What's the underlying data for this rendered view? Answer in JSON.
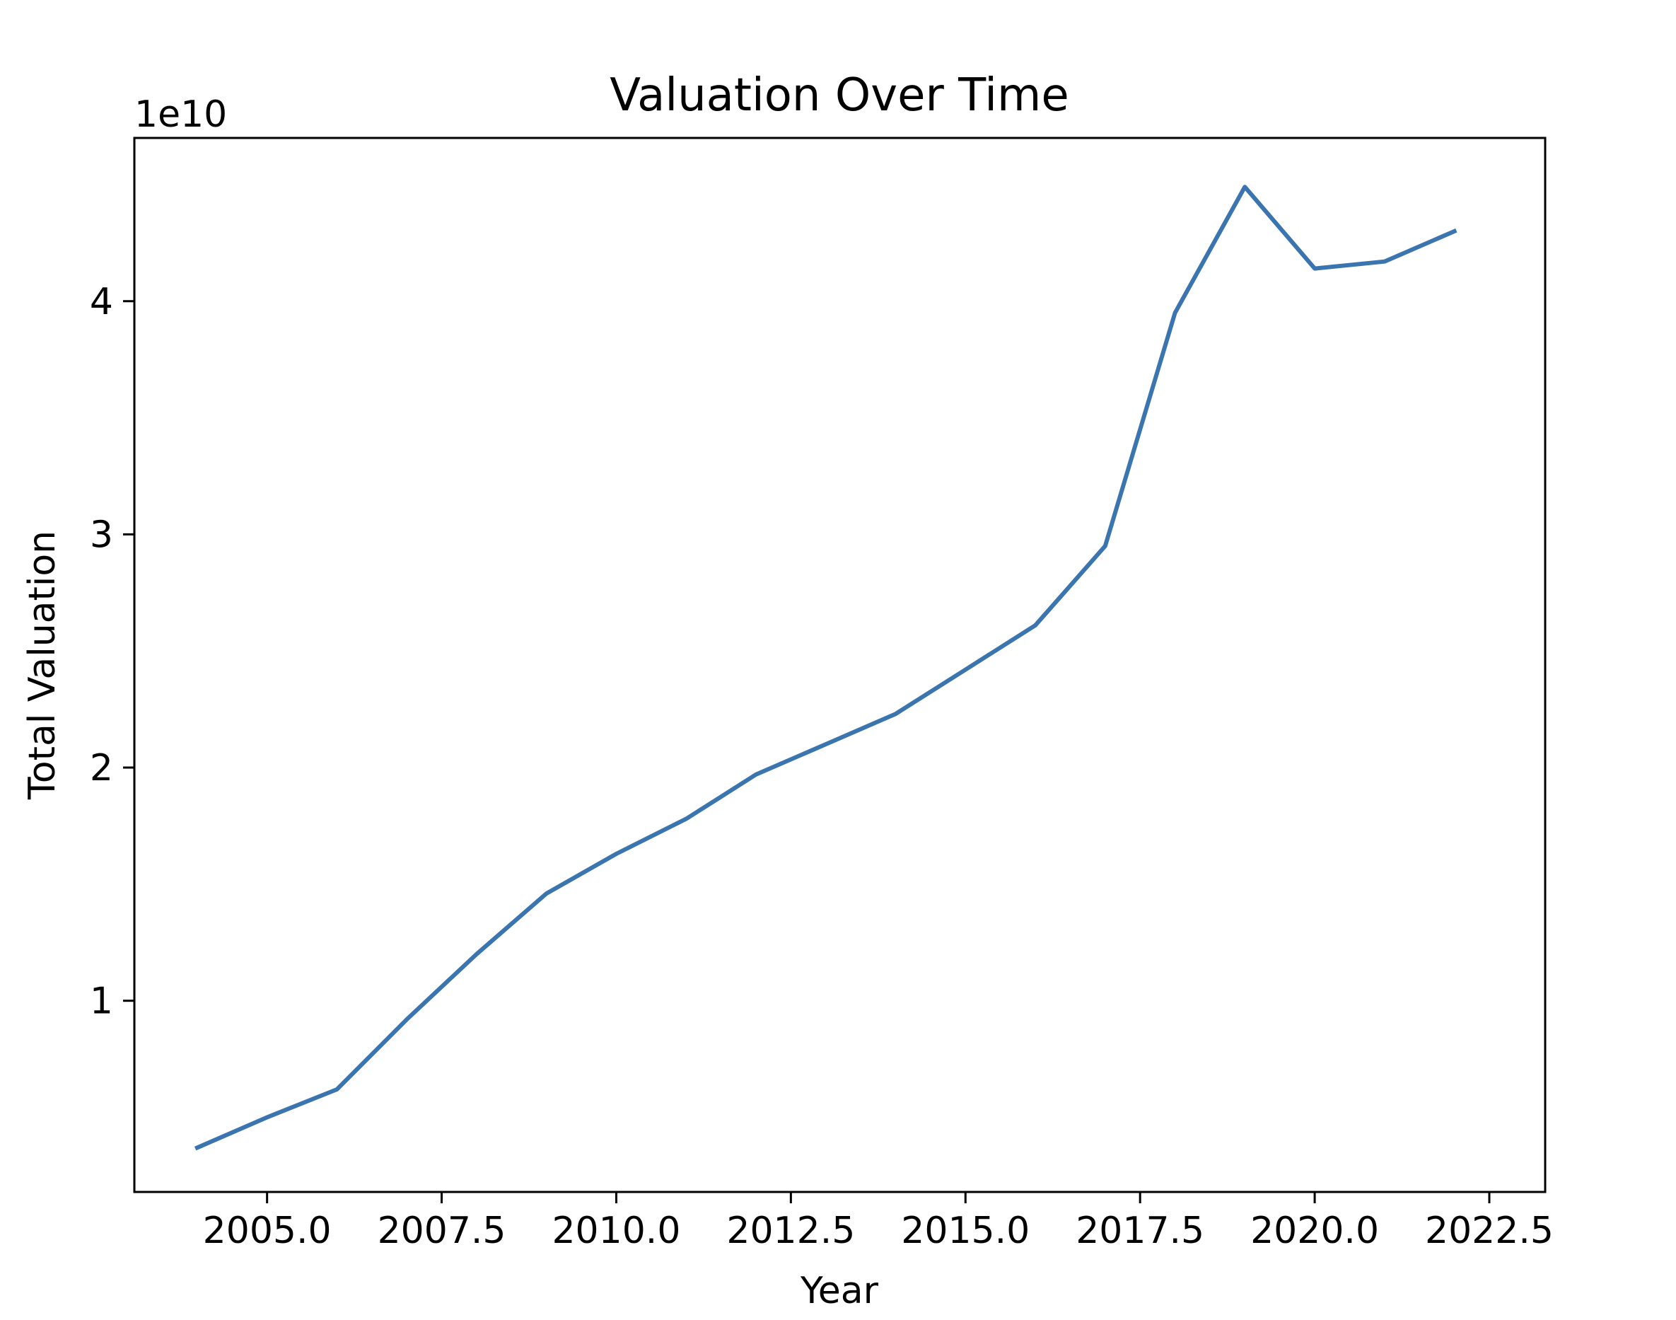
{
  "chart_data": {
    "type": "line",
    "title": "Valuation Over Time",
    "xlabel": "Year",
    "ylabel": "Total Valuation",
    "y_offset_label": "1e10",
    "xlim": [
      2003.1,
      2023.3
    ],
    "ylim": [
      0.18,
      4.7
    ],
    "x_ticks": [
      2005.0,
      2007.5,
      2010.0,
      2012.5,
      2015.0,
      2017.5,
      2020.0,
      2022.5
    ],
    "x_tick_labels": [
      "2005.0",
      "2007.5",
      "2010.0",
      "2012.5",
      "2015.0",
      "2017.5",
      "2020.0",
      "2022.5"
    ],
    "y_ticks": [
      1,
      2,
      3,
      4
    ],
    "y_tick_labels": [
      "1",
      "2",
      "3",
      "4"
    ],
    "grid": false,
    "series": [
      {
        "color": "#3a75b0",
        "x": [
          2004,
          2005,
          2006,
          2007,
          2008,
          2009,
          2010,
          2011,
          2012,
          2013,
          2014,
          2015,
          2016,
          2017,
          2018,
          2019,
          2020,
          2021,
          2022
        ],
        "y": [
          0.37,
          0.5,
          0.62,
          0.92,
          1.2,
          1.46,
          1.63,
          1.78,
          1.97,
          2.1,
          2.23,
          2.42,
          2.61,
          2.95,
          3.95,
          4.49,
          4.14,
          4.17,
          4.3
        ]
      }
    ]
  }
}
